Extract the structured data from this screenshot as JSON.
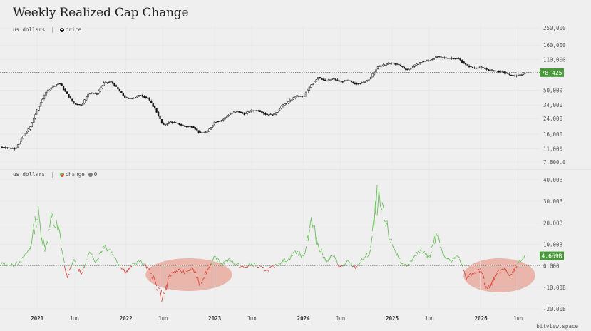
{
  "title": "Weekly Realized Cap Change",
  "watermark": "bitview.space",
  "top_panel": {
    "legend_unit": "us dollars",
    "legend_series": "price",
    "current_value_label": "78,425",
    "badge_color": "#4a9a3c"
  },
  "bottom_panel": {
    "legend_unit": "us dollars",
    "legend_series_1": "change",
    "legend_series_2": "0",
    "current_value_label": "4.669B",
    "positive_color": "#6abf5a",
    "negative_color": "#d9473b",
    "highlight_color": "#e8a294"
  },
  "chart_data": [
    {
      "type": "line",
      "series_style": "candlestick",
      "scale": "log",
      "ylabel": "us dollars",
      "y_ticks": [
        "250,000",
        "160,000",
        "110,000",
        "78,000",
        "50,000",
        "34,000",
        "24,000",
        "16,000",
        "11,000",
        "7,800.0"
      ],
      "y_tick_values": [
        250000,
        160000,
        110000,
        78000,
        50000,
        34000,
        24000,
        16000,
        11000,
        7800
      ],
      "ylim": [
        7800,
        250000
      ],
      "x_ticks": [
        "2021",
        "Jun",
        "2022",
        "Jun",
        "2023",
        "Jun",
        "2024",
        "Jun",
        "2025",
        "Jun",
        "2026",
        "Jun"
      ],
      "x_tick_years": [
        true,
        false,
        true,
        false,
        true,
        false,
        true,
        false,
        true,
        false,
        true,
        false
      ],
      "x_tick_dates": [
        "2021-01",
        "2021-06",
        "2022-01",
        "2022-06",
        "2023-01",
        "2023-06",
        "2024-01",
        "2024-06",
        "2025-01",
        "2025-06",
        "2026-01",
        "2026-06"
      ],
      "current_value": 78425,
      "series": [
        {
          "dates": [
            "2020-08",
            "2020-10",
            "2020-11",
            "2020-12",
            "2021-01",
            "2021-02",
            "2021-03",
            "2021-04",
            "2021-05",
            "2021-06",
            "2021-07",
            "2021-08",
            "2021-09",
            "2021-10",
            "2021-11",
            "2021-12",
            "2022-01",
            "2022-02",
            "2022-03",
            "2022-04",
            "2022-05",
            "2022-06",
            "2022-07",
            "2022-08",
            "2022-09",
            "2022-10",
            "2022-11",
            "2022-12",
            "2023-01",
            "2023-02",
            "2023-03",
            "2023-04",
            "2023-05",
            "2023-06",
            "2023-07",
            "2023-08",
            "2023-09",
            "2023-10",
            "2023-11",
            "2023-12",
            "2024-01",
            "2024-02",
            "2024-03",
            "2024-04",
            "2024-05",
            "2024-06",
            "2024-07",
            "2024-08",
            "2024-09",
            "2024-10",
            "2024-11",
            "2024-12",
            "2025-01",
            "2025-02",
            "2025-03",
            "2025-04",
            "2025-05",
            "2025-06",
            "2025-07",
            "2025-08",
            "2025-09",
            "2025-10",
            "2025-11",
            "2025-12",
            "2026-01",
            "2026-02",
            "2026-03",
            "2026-04",
            "2026-05",
            "2026-06",
            "2026-07"
          ],
          "values": [
            11500,
            11000,
            15000,
            19000,
            30000,
            45000,
            55000,
            60000,
            45000,
            35000,
            34000,
            47000,
            45000,
            60000,
            62000,
            50000,
            40000,
            41000,
            44000,
            40000,
            30000,
            20000,
            22000,
            21000,
            19500,
            19500,
            16500,
            17000,
            22000,
            23000,
            27000,
            29000,
            27000,
            29500,
            29500,
            26500,
            26500,
            33000,
            37000,
            43000,
            42000,
            57000,
            70000,
            63000,
            67000,
            62000,
            64000,
            59000,
            60000,
            68000,
            91000,
            96000,
            101000,
            95000,
            84000,
            94000,
            105000,
            107000,
            118000,
            115000,
            114000,
            112000,
            95000,
            88000,
            90000,
            84000,
            82000,
            80000,
            73000,
            72000,
            78425
          ]
        }
      ]
    },
    {
      "type": "area",
      "ylabel": "us dollars",
      "y_ticks": [
        "40.00B",
        "30.00B",
        "20.00B",
        "10.00B",
        "0.000",
        "-10.00B",
        "-20.00B"
      ],
      "y_tick_values": [
        40,
        30,
        20,
        10,
        0,
        -10,
        -20
      ],
      "ylim": [
        -20,
        40
      ],
      "x_ticks": [
        "2021",
        "Jun",
        "2022",
        "Jun",
        "2023",
        "Jun",
        "2024",
        "Jun",
        "2025",
        "Jun",
        "2026",
        "Jun"
      ],
      "x_tick_years": [
        true,
        false,
        true,
        false,
        true,
        false,
        true,
        false,
        true,
        false,
        true,
        false
      ],
      "x_tick_dates": [
        "2021-01",
        "2021-06",
        "2022-01",
        "2022-06",
        "2023-01",
        "2023-06",
        "2024-01",
        "2024-06",
        "2025-01",
        "2025-06",
        "2026-01",
        "2026-06"
      ],
      "current_value": 4.669,
      "series": [
        {
          "name": "change",
          "dates": [
            "2020-08",
            "2020-10",
            "2020-11",
            "2020-12",
            "2021-01",
            "2021-02",
            "2021-03",
            "2021-04",
            "2021-05",
            "2021-06",
            "2021-07",
            "2021-08",
            "2021-09",
            "2021-10",
            "2021-11",
            "2021-12",
            "2022-01",
            "2022-02",
            "2022-03",
            "2022-04",
            "2022-05",
            "2022-06",
            "2022-07",
            "2022-08",
            "2022-09",
            "2022-10",
            "2022-11",
            "2022-12",
            "2023-01",
            "2023-02",
            "2023-03",
            "2023-04",
            "2023-05",
            "2023-06",
            "2023-07",
            "2023-08",
            "2023-09",
            "2023-10",
            "2023-11",
            "2023-12",
            "2024-01",
            "2024-02",
            "2024-03",
            "2024-04",
            "2024-05",
            "2024-06",
            "2024-07",
            "2024-08",
            "2024-09",
            "2024-10",
            "2024-11",
            "2024-12",
            "2025-01",
            "2025-02",
            "2025-03",
            "2025-04",
            "2025-05",
            "2025-06",
            "2025-07",
            "2025-08",
            "2025-09",
            "2025-10",
            "2025-11",
            "2025-12",
            "2026-01",
            "2026-02",
            "2026-03",
            "2026-04",
            "2026-05",
            "2026-06",
            "2026-07"
          ],
          "values": [
            1.0,
            0.5,
            3.0,
            8.0,
            25.0,
            8.0,
            22.0,
            15.0,
            -6.0,
            3.0,
            -4.0,
            6.0,
            2.0,
            10.0,
            7.0,
            1.0,
            -3.0,
            1.0,
            2.0,
            -1.0,
            -8.0,
            -15.0,
            -4.0,
            -2.0,
            -3.0,
            -1.0,
            -8.0,
            -2.0,
            4.0,
            1.0,
            3.0,
            0.5,
            -1.0,
            1.0,
            -0.5,
            -2.0,
            -0.5,
            2.0,
            3.0,
            7.0,
            4.0,
            21.0,
            10.0,
            2.0,
            5.0,
            -1.0,
            2.0,
            -1.0,
            3.0,
            6.0,
            31.0,
            20.0,
            10.0,
            3.0,
            -1.0,
            4.0,
            8.0,
            3.0,
            17.0,
            4.0,
            2.0,
            5.0,
            -6.0,
            -3.0,
            -2.0,
            -12.0,
            -4.0,
            -1.0,
            -5.0,
            1.0,
            4.669
          ]
        }
      ]
    }
  ]
}
